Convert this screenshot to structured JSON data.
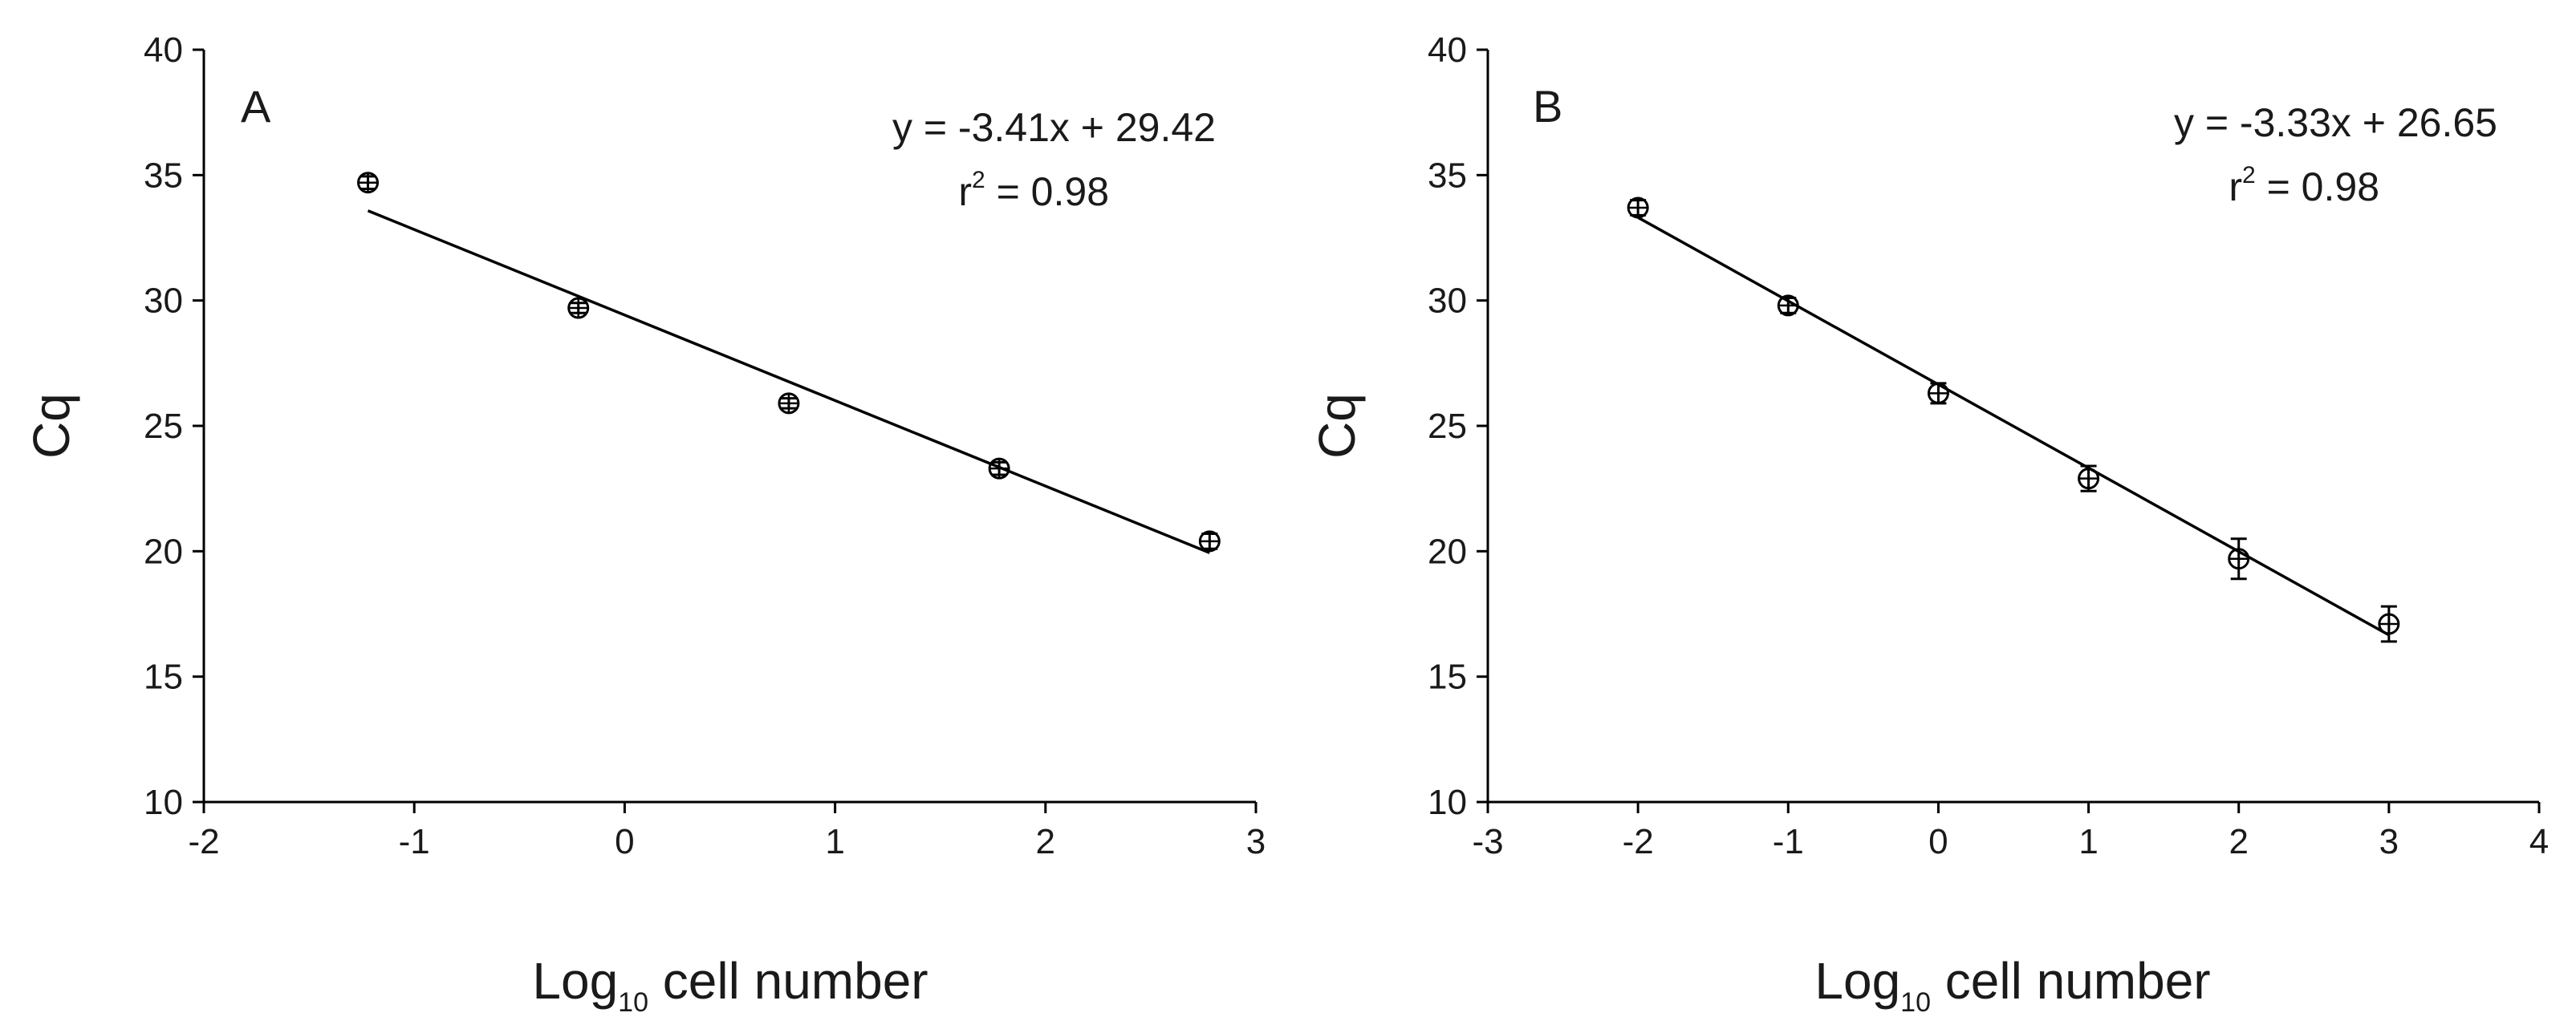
{
  "chart_data": [
    {
      "type": "scatter",
      "panel_label": "A",
      "title": "",
      "xlabel": "Log",
      "xlabel_sub": "10",
      "xlabel_rest": " cell number",
      "ylabel": "Cq",
      "xlim": [
        -2,
        3
      ],
      "ylim": [
        10,
        40
      ],
      "xticks": [
        -2,
        -1,
        0,
        1,
        2,
        3
      ],
      "yticks": [
        10,
        15,
        20,
        25,
        30,
        35,
        40
      ],
      "xtick_labels": [
        "-2",
        "-1",
        "0",
        "1",
        "2",
        "3"
      ],
      "ytick_labels": [
        "10",
        "15",
        "20",
        "25",
        "30",
        "35",
        "40"
      ],
      "grid": false,
      "equation": "y = -3.41x + 29.42",
      "r2_prefix": "r",
      "r2_sup": "2",
      "r2_suffix": " = 0.98",
      "fit": {
        "slope": -3.41,
        "intercept": 29.42,
        "x_range": [
          -1.22,
          2.78
        ]
      },
      "series": [
        {
          "x": [
            -1.22,
            -0.22,
            0.78,
            1.78,
            2.78
          ],
          "y": [
            34.7,
            29.7,
            25.9,
            23.3,
            20.4
          ],
          "err": [
            0.25,
            0.2,
            0.2,
            0.25,
            0.3
          ]
        }
      ]
    },
    {
      "type": "scatter",
      "panel_label": "B",
      "title": "",
      "xlabel": "Log",
      "xlabel_sub": "10",
      "xlabel_rest": " cell number",
      "ylabel": "Cq",
      "xlim": [
        -3,
        4
      ],
      "ylim": [
        10,
        40
      ],
      "xticks": [
        -3,
        -2,
        -1,
        0,
        1,
        2,
        3,
        4
      ],
      "yticks": [
        10,
        15,
        20,
        25,
        30,
        35,
        40
      ],
      "xtick_labels": [
        "-3",
        "-2",
        "-1",
        "0",
        "1",
        "2",
        "3",
        "4"
      ],
      "ytick_labels": [
        "10",
        "15",
        "20",
        "25",
        "30",
        "35",
        "40"
      ],
      "grid": false,
      "equation": "y = -3.33x + 26.65",
      "r2_prefix": "r",
      "r2_sup": "2",
      "r2_suffix": " = 0.98",
      "fit": {
        "slope": -3.33,
        "intercept": 26.65,
        "x_range": [
          -2,
          3
        ]
      },
      "series": [
        {
          "x": [
            -2,
            -1,
            0,
            1,
            2,
            3
          ],
          "y": [
            33.7,
            29.8,
            26.3,
            22.9,
            19.7,
            17.1
          ],
          "err": [
            0.3,
            0.3,
            0.4,
            0.5,
            0.8,
            0.7
          ]
        }
      ]
    }
  ]
}
